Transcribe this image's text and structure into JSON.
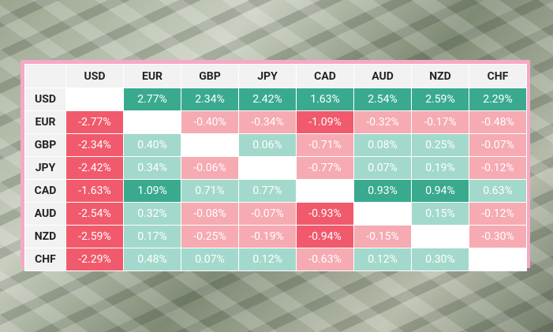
{
  "table": {
    "columns": [
      "USD",
      "EUR",
      "GBP",
      "JPY",
      "CAD",
      "AUD",
      "NZD",
      "CHF"
    ],
    "rows": [
      {
        "label": "USD",
        "cells": [
          null,
          "2.77%",
          "2.34%",
          "2.42%",
          "1.63%",
          "2.54%",
          "2.59%",
          "2.29%"
        ]
      },
      {
        "label": "EUR",
        "cells": [
          "-2.77%",
          null,
          "-0.40%",
          "-0.34%",
          "-1.09%",
          "-0.32%",
          "-0.17%",
          "-0.48%"
        ]
      },
      {
        "label": "GBP",
        "cells": [
          "-2.34%",
          "0.40%",
          null,
          "0.06%",
          "-0.71%",
          "0.08%",
          "0.25%",
          "-0.07%"
        ]
      },
      {
        "label": "JPY",
        "cells": [
          "-2.42%",
          "0.34%",
          "-0.06%",
          null,
          "-0.77%",
          "0.07%",
          "0.19%",
          "-0.12%"
        ]
      },
      {
        "label": "CAD",
        "cells": [
          "-1.63%",
          "1.09%",
          "0.71%",
          "0.77%",
          null,
          "0.93%",
          "0.94%",
          "0.63%"
        ]
      },
      {
        "label": "AUD",
        "cells": [
          "-2.54%",
          "0.32%",
          "-0.08%",
          "-0.07%",
          "-0.93%",
          null,
          "0.15%",
          "-0.12%"
        ]
      },
      {
        "label": "NZD",
        "cells": [
          "-2.59%",
          "0.17%",
          "-0.25%",
          "-0.19%",
          "-0.94%",
          "-0.15%",
          null,
          "-0.30%"
        ]
      },
      {
        "label": "CHF",
        "cells": [
          "-2.29%",
          "0.48%",
          "0.07%",
          "0.12%",
          "-0.63%",
          "0.12%",
          "0.30%",
          null
        ]
      }
    ]
  }
}
